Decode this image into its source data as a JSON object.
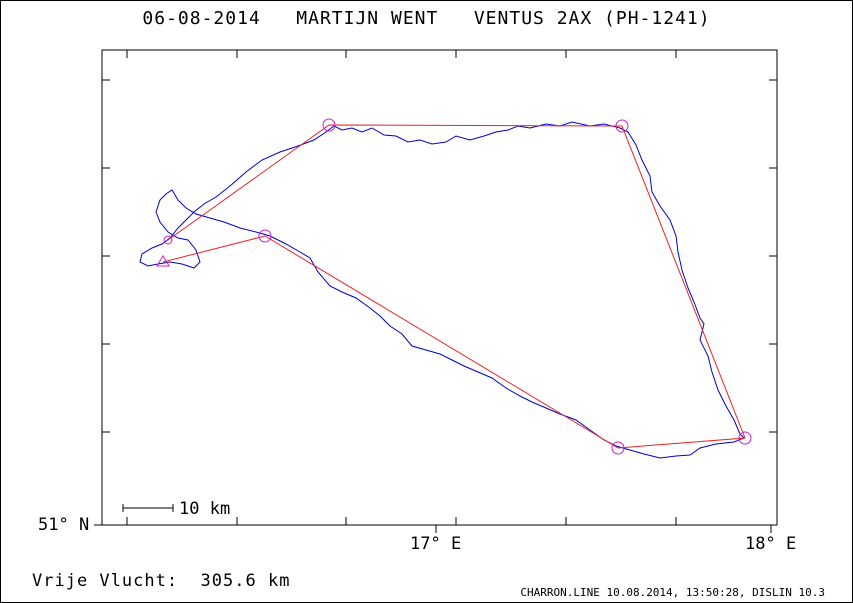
{
  "header": {
    "date": "06-08-2014",
    "pilot": "MARTIJN WENT",
    "glider": "VENTUS 2AX (PH-1241)"
  },
  "axes": {
    "lat_label": "51° N",
    "lon_labels": [
      "17° E",
      "18° E"
    ]
  },
  "scale_bar": {
    "label": "10 km"
  },
  "footer": {
    "distance_label": "Vrije Vlucht:",
    "distance_value": "305.6 km",
    "software": "CHARRON.LINE 10.08.2014, 13:50:28, DISLIN 10.3"
  },
  "colors": {
    "track": "#0000cc",
    "task": "#ee2222",
    "turnpoint": "#cc22cc",
    "frame": "#000000"
  },
  "map_data": {
    "type": "flight-track",
    "lon_ticks": [
      17.0,
      18.0
    ],
    "lat_ticks": [
      51.0
    ],
    "start_marker": "triangle",
    "turnpoint_marker": "circle"
  }
}
